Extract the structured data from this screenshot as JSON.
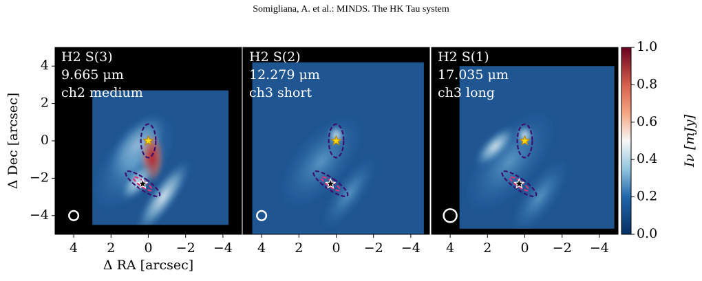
{
  "header": "Somigliana, A. et al.: MINDS. The HK Tau system",
  "chart_data": [
    {
      "type": "heatmap",
      "title_lines": [
        "H2 S(3)",
        "9.665 μm",
        "ch2 medium"
      ],
      "xlabel": "Δ RA [arcsec]",
      "ylabel": "Δ Dec [arcsec]",
      "xlim": [
        5,
        -5
      ],
      "ylim": [
        -5,
        5
      ],
      "xticks": [
        4,
        2,
        0,
        {
          "value": -2,
          "label": "−2"
        },
        {
          "value": -4,
          "label": "−4"
        }
      ],
      "yticks": [
        {
          "value": -4,
          "label": "−4"
        },
        {
          "value": -2,
          "label": "−2"
        },
        0,
        2,
        4
      ]
    },
    {
      "type": "heatmap",
      "title_lines": [
        "H2 S(2)",
        "12.279 μm",
        "ch3 short"
      ],
      "xlim": [
        5,
        -5
      ],
      "ylim": [
        -5,
        5
      ],
      "xticks": [
        4,
        2,
        0,
        {
          "value": -2,
          "label": "−2"
        },
        {
          "value": -4,
          "label": "−4"
        }
      ]
    },
    {
      "type": "heatmap",
      "title_lines": [
        "H2 S(1)",
        "17.035 μm",
        "ch3 long"
      ],
      "xlim": [
        5,
        -5
      ],
      "ylim": [
        -5,
        5
      ],
      "xticks": [
        4,
        2,
        0,
        {
          "value": -2,
          "label": "−2"
        },
        {
          "value": -4,
          "label": "−4"
        }
      ]
    },
    {
      "type": "colorbar",
      "label": "Iν [mJy]",
      "lim": [
        0,
        1
      ],
      "ticks": [
        {
          "value": 0,
          "label": "0.0"
        },
        0.2,
        0.4,
        0.6,
        0.8,
        {
          "value": 1,
          "label": "1.0"
        }
      ]
    }
  ]
}
